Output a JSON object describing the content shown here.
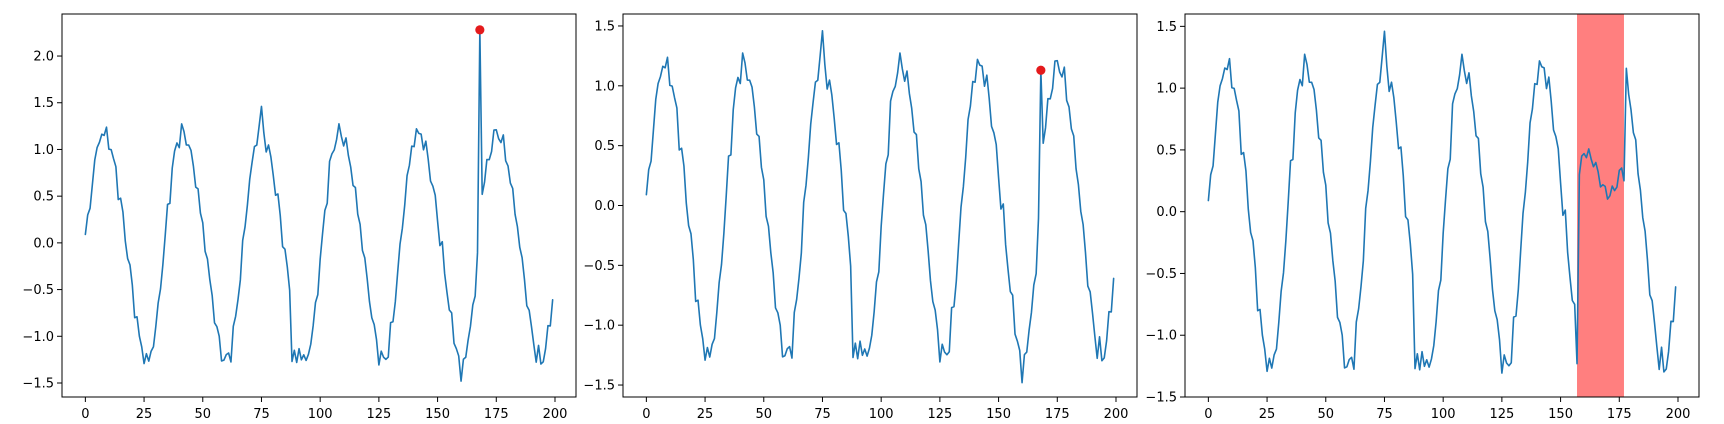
{
  "chart_data": [
    {
      "type": "line",
      "title": "",
      "xlabel": "",
      "ylabel": "",
      "xlim": [
        -9.95,
        208.95
      ],
      "ylim": [
        -1.65,
        2.45
      ],
      "xticks": [
        0,
        25,
        50,
        75,
        100,
        125,
        150,
        175,
        200
      ],
      "yticks": [
        -1.5,
        -1.0,
        -0.5,
        0.0,
        0.5,
        1.0,
        1.5,
        2.0
      ],
      "ytick_labels": [
        "−1.5",
        "−1.0",
        "−0.5",
        "0.0",
        "0.5",
        "1.0",
        "1.5",
        "2.0"
      ],
      "line_color": "#1f77b4",
      "marker_color": "#e41a1c",
      "spike": {
        "x": 168,
        "y": 2.28
      },
      "anomaly_point": {
        "x": 168,
        "y": 2.28
      },
      "anomaly_span": null
    },
    {
      "type": "line",
      "title": "",
      "xlabel": "",
      "ylabel": "",
      "xlim": [
        -9.95,
        208.95
      ],
      "ylim": [
        -1.6,
        1.6
      ],
      "xticks": [
        0,
        25,
        50,
        75,
        100,
        125,
        150,
        175,
        200
      ],
      "yticks": [
        -1.5,
        -1.0,
        -0.5,
        0.0,
        0.5,
        1.0,
        1.5
      ],
      "ytick_labels": [
        "−1.5",
        "−1.0",
        "−0.5",
        "0.0",
        "0.5",
        "1.0",
        "1.5"
      ],
      "line_color": "#1f77b4",
      "marker_color": "#e41a1c",
      "spike": {
        "x": 168,
        "y": 1.13
      },
      "anomaly_point": {
        "x": 168,
        "y": 1.13
      },
      "anomaly_span": null
    },
    {
      "type": "line",
      "title": "",
      "xlabel": "",
      "ylabel": "",
      "xlim": [
        -9.95,
        208.95
      ],
      "ylim": [
        -1.5,
        1.6
      ],
      "xticks": [
        0,
        25,
        50,
        75,
        100,
        125,
        150,
        175,
        200
      ],
      "yticks": [
        -1.5,
        -1.0,
        -0.5,
        0.0,
        0.5,
        1.0,
        1.5
      ],
      "ytick_labels": [
        "−1.5",
        "−1.0",
        "−0.5",
        "0.0",
        "0.5",
        "1.0",
        "1.5"
      ],
      "line_color": "#1f77b4",
      "span_color": "#ff7f7f",
      "spike": null,
      "anomaly_point": null,
      "anomaly_span": {
        "x0": 157,
        "x1": 177
      },
      "plateau_segment": {
        "x0": 157,
        "x1": 177
      }
    }
  ]
}
